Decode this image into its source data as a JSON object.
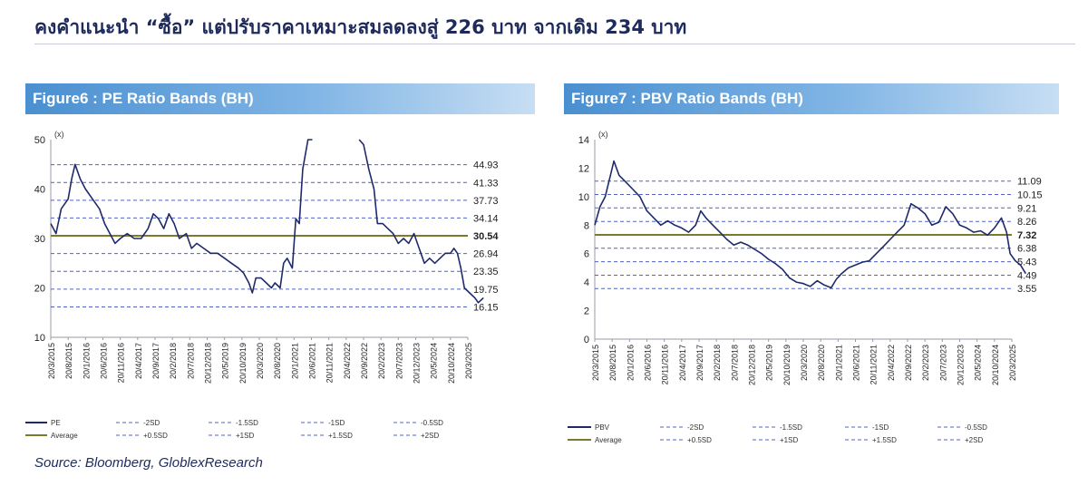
{
  "headline": "คงคำแนะนำ “ซื้อ” แต่ปรับราคาเหมาะสมลดลงสู่ 226 บาท จากเดิม 234 บาท",
  "source": "Source: Bloomberg, GloblexResearch",
  "colors": {
    "series": "#1f2a6b",
    "band": "#4f63c8",
    "average": "#7a7a2a",
    "title_bg": "#4a8fd0"
  },
  "chart_data": [
    {
      "id": "pe",
      "type": "line",
      "title": "Figure6 : PE Ratio Bands (BH)",
      "ylabel": "(x)",
      "ylim": [
        10,
        50
      ],
      "yticks": [
        10,
        20,
        30,
        40,
        50
      ],
      "xticks": [
        "20/3/2015",
        "20/8/2015",
        "20/1/2016",
        "20/6/2016",
        "20/11/2016",
        "20/4/2017",
        "20/9/2017",
        "20/2/2018",
        "20/7/2018",
        "20/12/2018",
        "20/5/2019",
        "20/10/2019",
        "20/3/2020",
        "20/8/2020",
        "20/1/2021",
        "20/6/2021",
        "20/11/2021",
        "20/4/2022",
        "20/9/2022",
        "20/2/2023",
        "20/7/2023",
        "20/12/2023",
        "20/5/2024",
        "20/10/2024",
        "20/3/2025"
      ],
      "average": 30.54,
      "bands": [
        44.93,
        41.33,
        37.73,
        34.14,
        26.94,
        23.35,
        19.75,
        16.15
      ],
      "band_labels": [
        "44.93",
        "41.33",
        "37.73",
        "34.14",
        "30.54",
        "26.94",
        "23.35",
        "19.75",
        "16.15"
      ],
      "series": [
        {
          "name": "PE",
          "points": [
            [
              0,
              33
            ],
            [
              0.3,
              31
            ],
            [
              0.6,
              36
            ],
            [
              1,
              38
            ],
            [
              1.2,
              42
            ],
            [
              1.4,
              45
            ],
            [
              1.7,
              42
            ],
            [
              2,
              40
            ],
            [
              2.4,
              38
            ],
            [
              2.8,
              36
            ],
            [
              3.1,
              33
            ],
            [
              3.4,
              31
            ],
            [
              3.7,
              29
            ],
            [
              4,
              30
            ],
            [
              4.4,
              31
            ],
            [
              4.8,
              30
            ],
            [
              5.2,
              30
            ],
            [
              5.6,
              32
            ],
            [
              5.9,
              35
            ],
            [
              6.2,
              34
            ],
            [
              6.5,
              32
            ],
            [
              6.8,
              35
            ],
            [
              7.1,
              33
            ],
            [
              7.4,
              30
            ],
            [
              7.8,
              31
            ],
            [
              8.1,
              28
            ],
            [
              8.4,
              29
            ],
            [
              8.8,
              28
            ],
            [
              9.2,
              27
            ],
            [
              9.6,
              27
            ],
            [
              10,
              26
            ],
            [
              10.4,
              25
            ],
            [
              10.8,
              24
            ],
            [
              11.1,
              23
            ],
            [
              11.4,
              21
            ],
            [
              11.6,
              19
            ],
            [
              11.8,
              22
            ],
            [
              12.1,
              22
            ],
            [
              12.4,
              21
            ],
            [
              12.7,
              20
            ],
            [
              12.9,
              21
            ],
            [
              13.2,
              20
            ],
            [
              13.4,
              25
            ],
            [
              13.6,
              26
            ],
            [
              13.9,
              24
            ],
            [
              14.1,
              34
            ],
            [
              14.3,
              33
            ],
            [
              14.5,
              44
            ],
            [
              14.8,
              50
            ],
            [
              15.05,
              50
            ]
          ]
        },
        {
          "name": "PE",
          "points": [
            [
              17.75,
              50
            ],
            [
              18,
              49
            ],
            [
              18.3,
              44
            ],
            [
              18.6,
              40
            ],
            [
              18.8,
              33
            ],
            [
              19.1,
              33
            ],
            [
              19.4,
              32
            ],
            [
              19.7,
              31
            ],
            [
              20,
              29
            ],
            [
              20.3,
              30
            ],
            [
              20.6,
              29
            ],
            [
              20.9,
              31
            ],
            [
              21.2,
              28
            ],
            [
              21.5,
              25
            ],
            [
              21.8,
              26
            ],
            [
              22.1,
              25
            ],
            [
              22.4,
              26
            ],
            [
              22.7,
              27
            ],
            [
              23,
              27
            ],
            [
              23.2,
              28
            ],
            [
              23.4,
              27
            ],
            [
              23.6,
              24
            ],
            [
              23.8,
              20
            ],
            [
              24.1,
              19
            ],
            [
              24.4,
              18
            ],
            [
              24.6,
              17
            ],
            [
              24.9,
              18
            ]
          ]
        }
      ],
      "legend": [
        "PE",
        "-2SD",
        "-1.5SD",
        "-1SD",
        "-0.5SD",
        "Average",
        "+0.5SD",
        "+1SD",
        "+1.5SD",
        "+2SD"
      ]
    },
    {
      "id": "pbv",
      "type": "line",
      "title": "Figure7 : PBV Ratio Bands (BH)",
      "ylabel": "(x)",
      "ylim": [
        0,
        14
      ],
      "yticks": [
        0,
        2,
        4,
        6,
        8,
        10,
        12,
        14
      ],
      "xticks": [
        "20/3/2015",
        "20/8/2015",
        "20/1/2016",
        "20/6/2016",
        "20/11/2016",
        "20/4/2017",
        "20/9/2017",
        "20/2/2018",
        "20/7/2018",
        "20/12/2018",
        "20/5/2019",
        "20/10/2019",
        "20/3/2020",
        "20/8/2020",
        "20/1/2021",
        "20/6/2021",
        "20/11/2021",
        "20/4/2022",
        "20/9/2022",
        "20/2/2023",
        "20/7/2023",
        "20/12/2023",
        "20/5/2024",
        "20/10/2024",
        "20/3/2025"
      ],
      "average": 7.32,
      "bands": [
        11.09,
        10.15,
        9.21,
        8.26,
        6.38,
        5.43,
        4.49,
        3.55
      ],
      "band_labels": [
        "11.09",
        "10.15",
        "9.21",
        "8.26",
        "7.32",
        "6.38",
        "5.43",
        "4.49",
        "3.55"
      ],
      "series": [
        {
          "name": "PBV",
          "points": [
            [
              0,
              8
            ],
            [
              0.3,
              9.3
            ],
            [
              0.6,
              10
            ],
            [
              0.9,
              11.5
            ],
            [
              1.1,
              12.5
            ],
            [
              1.4,
              11.5
            ],
            [
              1.8,
              11
            ],
            [
              2.2,
              10.5
            ],
            [
              2.6,
              10
            ],
            [
              3,
              9
            ],
            [
              3.4,
              8.5
            ],
            [
              3.8,
              8
            ],
            [
              4.2,
              8.3
            ],
            [
              4.6,
              8
            ],
            [
              5,
              7.8
            ],
            [
              5.4,
              7.5
            ],
            [
              5.8,
              8
            ],
            [
              6.1,
              9
            ],
            [
              6.4,
              8.5
            ],
            [
              6.8,
              8
            ],
            [
              7.2,
              7.5
            ],
            [
              7.6,
              7
            ],
            [
              8,
              6.6
            ],
            [
              8.4,
              6.8
            ],
            [
              8.8,
              6.6
            ],
            [
              9.2,
              6.3
            ],
            [
              9.6,
              6
            ],
            [
              10,
              5.6
            ],
            [
              10.4,
              5.3
            ],
            [
              10.8,
              4.9
            ],
            [
              11.2,
              4.3
            ],
            [
              11.6,
              4
            ],
            [
              12,
              3.9
            ],
            [
              12.4,
              3.7
            ],
            [
              12.8,
              4.1
            ],
            [
              13.2,
              3.8
            ],
            [
              13.6,
              3.6
            ],
            [
              13.9,
              4.2
            ],
            [
              14.2,
              4.6
            ],
            [
              14.6,
              5
            ],
            [
              15,
              5.2
            ],
            [
              15.4,
              5.4
            ],
            [
              15.8,
              5.5
            ],
            [
              16.2,
              6
            ],
            [
              16.6,
              6.5
            ],
            [
              17,
              7
            ],
            [
              17.4,
              7.5
            ],
            [
              17.8,
              8
            ],
            [
              18.2,
              9.5
            ],
            [
              18.6,
              9.2
            ],
            [
              19,
              8.8
            ],
            [
              19.4,
              8
            ],
            [
              19.8,
              8.2
            ],
            [
              20.2,
              9.3
            ],
            [
              20.6,
              8.8
            ],
            [
              21,
              8
            ],
            [
              21.4,
              7.8
            ],
            [
              21.8,
              7.5
            ],
            [
              22.2,
              7.6
            ],
            [
              22.6,
              7.3
            ],
            [
              23,
              7.8
            ],
            [
              23.4,
              8.5
            ],
            [
              23.7,
              7.5
            ],
            [
              23.9,
              6
            ],
            [
              24.2,
              5.5
            ],
            [
              24.5,
              5.2
            ],
            [
              24.8,
              4.6
            ]
          ]
        }
      ],
      "legend": [
        "PBV",
        "-2SD",
        "-1.5SD",
        "-1SD",
        "-0.5SD",
        "Average",
        "+0.5SD",
        "+1SD",
        "+1.5SD",
        "+2SD"
      ]
    }
  ]
}
